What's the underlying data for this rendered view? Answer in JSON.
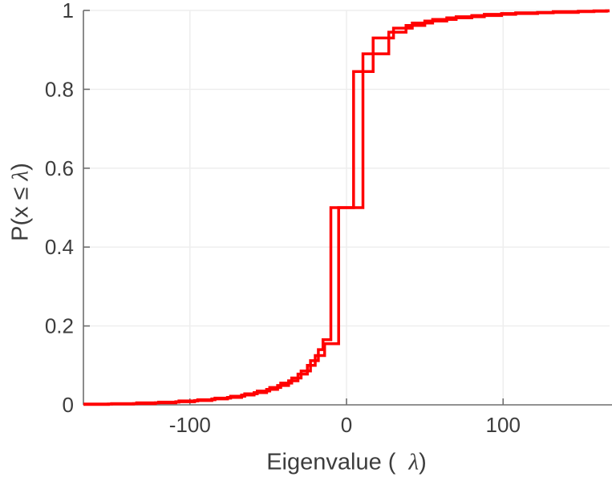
{
  "figure": {
    "background": "#ffffff"
  },
  "chart_data": {
    "type": "step",
    "subtype": "empirical-cdf",
    "title": "",
    "xlabel": "Eigenvalue (  λ)",
    "ylabel": "P(x ≤ λ)",
    "xlim": [
      -168,
      168
    ],
    "ylim": [
      0,
      1
    ],
    "x_ticks": [
      -100,
      0,
      100
    ],
    "x_tick_labels": [
      "-100",
      "0",
      "100"
    ],
    "y_ticks": [
      0,
      0.2,
      0.4,
      0.6,
      0.8,
      1
    ],
    "y_tick_labels": [
      "0",
      "0.2",
      "0.4",
      "0.6",
      "0.8",
      "1"
    ],
    "grid": true,
    "legend": "none",
    "line_color": "#ff0000",
    "line_width": 3.5,
    "grid_color": "#ededed",
    "axis_color": "#6e6e6e",
    "text_color": "#3d3d3d",
    "series": [
      {
        "name": "ecdf-curve-1",
        "points": [
          [
            -168,
            0.002
          ],
          [
            -150,
            0.003
          ],
          [
            -134,
            0.005
          ],
          [
            -120,
            0.007
          ],
          [
            -107,
            0.01
          ],
          [
            -95,
            0.013
          ],
          [
            -84,
            0.017
          ],
          [
            -74,
            0.022
          ],
          [
            -65,
            0.028
          ],
          [
            -57,
            0.035
          ],
          [
            -49,
            0.044
          ],
          [
            -42,
            0.055
          ],
          [
            -35,
            0.068
          ],
          [
            -29,
            0.086
          ],
          [
            -23,
            0.112
          ],
          [
            -18,
            0.14
          ],
          [
            -15,
            0.165
          ],
          [
            -10,
            0.5
          ],
          [
            4.5,
            0.845
          ],
          [
            17,
            0.93
          ],
          [
            30,
            0.955
          ],
          [
            42,
            0.968
          ],
          [
            55,
            0.977
          ],
          [
            70,
            0.984
          ],
          [
            88,
            0.99
          ],
          [
            108,
            0.994
          ],
          [
            132,
            0.997
          ],
          [
            158,
            0.999
          ]
        ]
      },
      {
        "name": "ecdf-curve-2",
        "points": [
          [
            -168,
            0.001
          ],
          [
            -152,
            0.002
          ],
          [
            -136,
            0.003
          ],
          [
            -122,
            0.005
          ],
          [
            -109,
            0.008
          ],
          [
            -97,
            0.011
          ],
          [
            -86,
            0.015
          ],
          [
            -76,
            0.019
          ],
          [
            -67,
            0.025
          ],
          [
            -59,
            0.031
          ],
          [
            -51,
            0.039
          ],
          [
            -44,
            0.049
          ],
          [
            -37,
            0.061
          ],
          [
            -31,
            0.078
          ],
          [
            -25,
            0.1
          ],
          [
            -20,
            0.125
          ],
          [
            -14,
            0.155
          ],
          [
            -5,
            0.5
          ],
          [
            10.5,
            0.89
          ],
          [
            27,
            0.945
          ],
          [
            38,
            0.962
          ],
          [
            50,
            0.973
          ],
          [
            64,
            0.981
          ],
          [
            80,
            0.987
          ],
          [
            99,
            0.992
          ],
          [
            122,
            0.995
          ],
          [
            148,
            0.998
          ],
          [
            166,
            0.999
          ]
        ]
      }
    ]
  }
}
